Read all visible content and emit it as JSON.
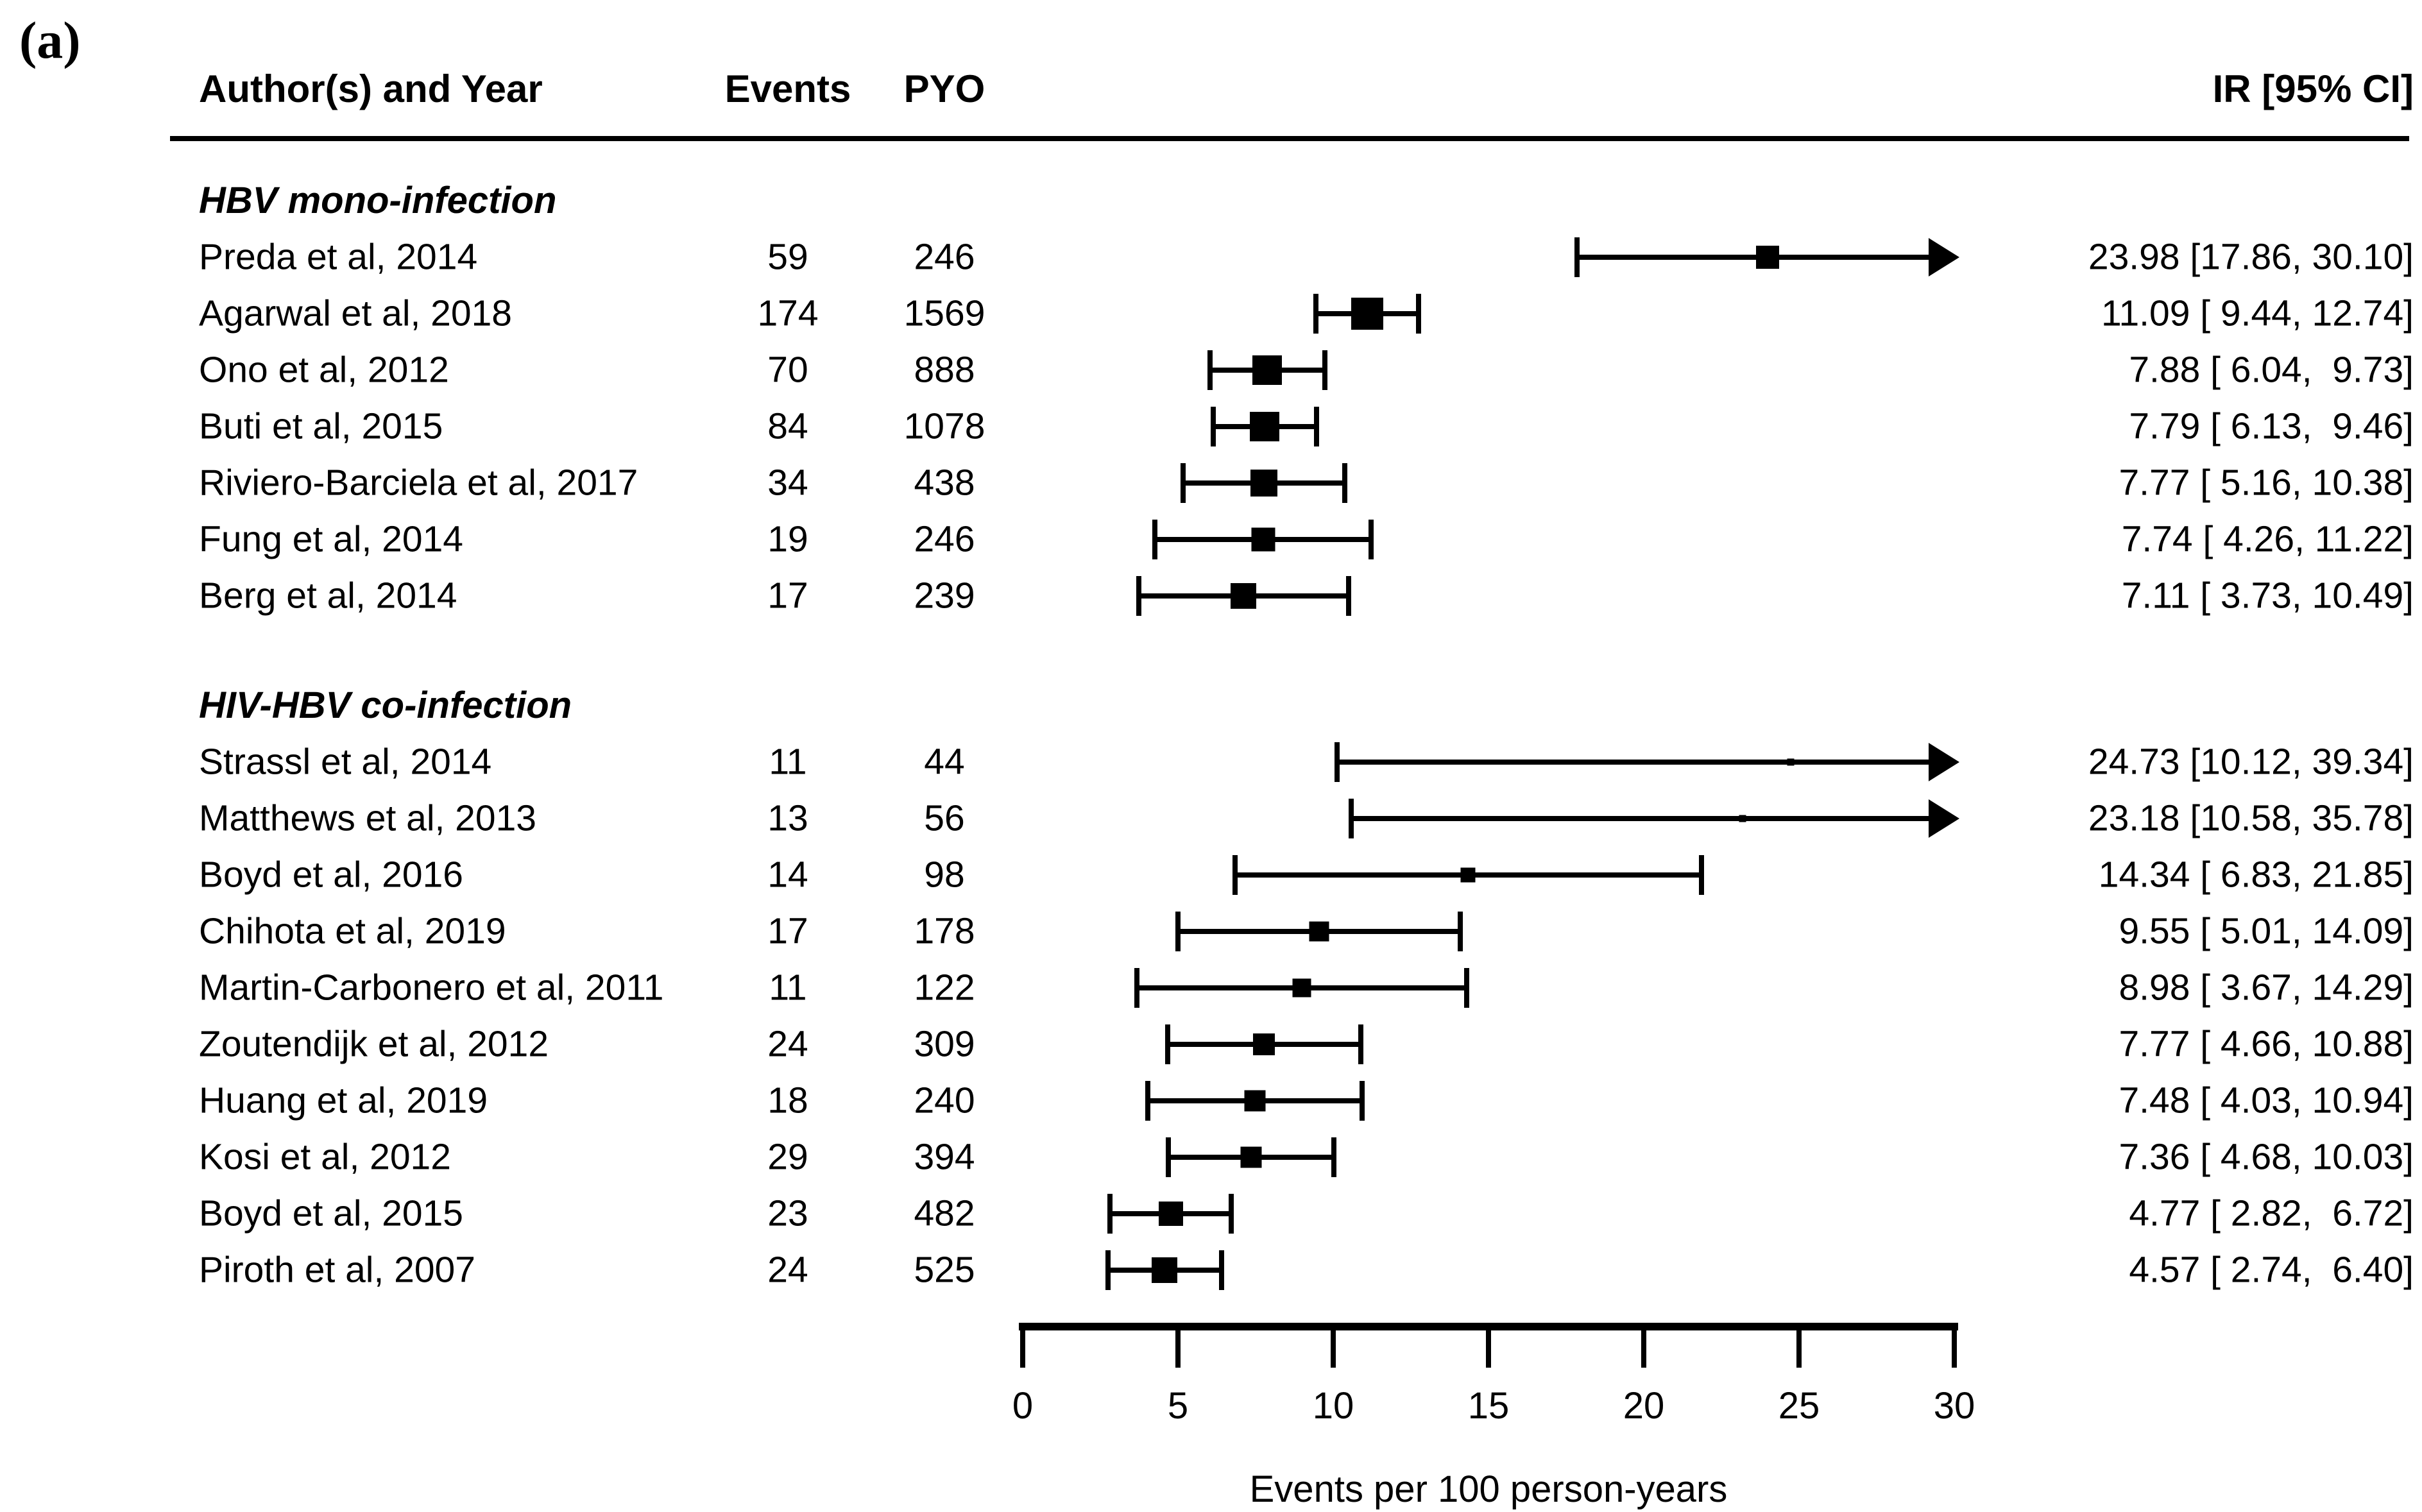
{
  "panel_label": "(a)",
  "header": {
    "author": "Author(s) and Year",
    "events": "Events",
    "pyo": "PYO",
    "ir": "IR [95% CI]"
  },
  "axis": {
    "min": 0,
    "max": 30,
    "ticks": [
      0,
      5,
      10,
      15,
      20,
      25,
      30
    ],
    "xlabel": "Events per 100 person-years"
  },
  "chart_data": {
    "type": "forest",
    "title": "",
    "xlabel": "Events per 100 person-years",
    "xlim": [
      0,
      30
    ],
    "tick_values": [
      0,
      5,
      10,
      15,
      20,
      25,
      30
    ],
    "columns": [
      "Author(s) and Year",
      "Events",
      "PYO",
      "IR [95% CI]"
    ],
    "arrow_note": "confidence intervals exceeding the axis maximum are clipped with right arrows",
    "groups": [
      {
        "label": "HBV mono-infection",
        "studies": [
          {
            "author": "Preda et al, 2014",
            "events": "59",
            "pyo": "246",
            "est": 23.98,
            "lo": 17.86,
            "hi": 30.1,
            "ir_label": "23.98 [17.86, 30.10]",
            "marker": 36
          },
          {
            "author": "Agarwal et al, 2018",
            "events": "174",
            "pyo": "1569",
            "est": 11.09,
            "lo": 9.44,
            "hi": 12.74,
            "ir_label": "11.09 [ 9.44, 12.74]",
            "marker": 50
          },
          {
            "author": "Ono et al, 2012",
            "events": "70",
            "pyo": "888",
            "est": 7.88,
            "lo": 6.04,
            "hi": 9.73,
            "ir_label": "7.88 [ 6.04,  9.73]",
            "marker": 46
          },
          {
            "author": "Buti et al, 2015",
            "events": "84",
            "pyo": "1078",
            "est": 7.79,
            "lo": 6.13,
            "hi": 9.46,
            "ir_label": "7.79 [ 6.13,  9.46]",
            "marker": 46
          },
          {
            "author": "Riviero-Barciela et al, 2017",
            "events": "34",
            "pyo": "438",
            "est": 7.77,
            "lo": 5.16,
            "hi": 10.38,
            "ir_label": "7.77 [ 5.16, 10.38]",
            "marker": 42
          },
          {
            "author": "Fung et al, 2014",
            "events": "19",
            "pyo": "246",
            "est": 7.74,
            "lo": 4.26,
            "hi": 11.22,
            "ir_label": "7.74 [ 4.26, 11.22]",
            "marker": 37
          },
          {
            "author": "Berg et al, 2014",
            "events": "17",
            "pyo": "239",
            "est": 7.11,
            "lo": 3.73,
            "hi": 10.49,
            "ir_label": "7.11 [ 3.73, 10.49]",
            "marker": 40
          }
        ]
      },
      {
        "label": "HIV-HBV co-infection",
        "studies": [
          {
            "author": "Strassl et al, 2014",
            "events": "11",
            "pyo": "44",
            "est": 24.73,
            "lo": 10.12,
            "hi": 39.34,
            "ir_label": "24.73 [10.12, 39.34]",
            "marker": 11
          },
          {
            "author": "Matthews et al, 2013",
            "events": "13",
            "pyo": "56",
            "est": 23.18,
            "lo": 10.58,
            "hi": 35.78,
            "ir_label": "23.18 [10.58, 35.78]",
            "marker": 11
          },
          {
            "author": "Boyd et al, 2016",
            "events": "14",
            "pyo": "98",
            "est": 14.34,
            "lo": 6.83,
            "hi": 21.85,
            "ir_label": "14.34 [ 6.83, 21.85]",
            "marker": 23
          },
          {
            "author": "Chihota et al, 2019",
            "events": "17",
            "pyo": "178",
            "est": 9.55,
            "lo": 5.01,
            "hi": 14.09,
            "ir_label": "9.55 [ 5.01, 14.09]",
            "marker": 31
          },
          {
            "author": "Martin-Carbonero et al, 2011",
            "events": "11",
            "pyo": "122",
            "est": 8.98,
            "lo": 3.67,
            "hi": 14.29,
            "ir_label": "8.98 [ 3.67, 14.29]",
            "marker": 29
          },
          {
            "author": "Zoutendijk et al, 2012",
            "events": "24",
            "pyo": "309",
            "est": 7.77,
            "lo": 4.66,
            "hi": 10.88,
            "ir_label": "7.77 [ 4.66, 10.88]",
            "marker": 34
          },
          {
            "author": "Huang et al, 2019",
            "events": "18",
            "pyo": "240",
            "est": 7.48,
            "lo": 4.03,
            "hi": 10.94,
            "ir_label": "7.48 [ 4.03, 10.94]",
            "marker": 33
          },
          {
            "author": "Kosi et al, 2012",
            "events": "29",
            "pyo": "394",
            "est": 7.36,
            "lo": 4.68,
            "hi": 10.03,
            "ir_label": "7.36 [ 4.68, 10.03]",
            "marker": 33
          },
          {
            "author": "Boyd et al, 2015",
            "events": "23",
            "pyo": "482",
            "est": 4.77,
            "lo": 2.82,
            "hi": 6.72,
            "ir_label": "4.77 [ 2.82,  6.72]",
            "marker": 38
          },
          {
            "author": "Piroth et al, 2007",
            "events": "24",
            "pyo": "525",
            "est": 4.57,
            "lo": 2.74,
            "hi": 6.4,
            "ir_label": "4.57 [ 2.74,  6.40]",
            "marker": 40
          }
        ]
      }
    ],
    "colors": {
      "foreground": "#000000",
      "background": "#ffffff"
    }
  }
}
